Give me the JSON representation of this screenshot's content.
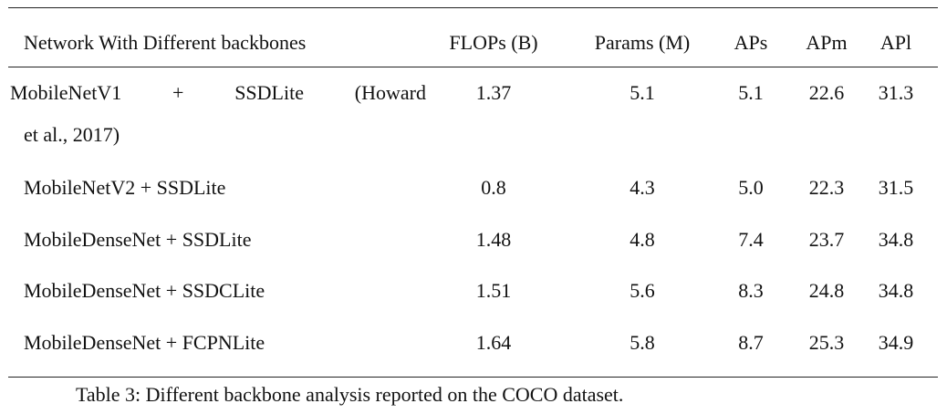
{
  "table": {
    "headers": [
      "Network With Different backbones",
      "FLOPs (B)",
      "Params (M)",
      "APs",
      "APm",
      "APl"
    ],
    "rows": [
      {
        "network_line1": [
          "MobileNetV1",
          "+",
          "SSDLite",
          "(Howard"
        ],
        "network_line2": "et al., 2017)",
        "flops": "1.37",
        "params": "5.1",
        "aps": "5.1",
        "apm": "22.6",
        "apl": "31.3"
      },
      {
        "network": "MobileNetV2 + SSDLite",
        "flops": "0.8",
        "params": "4.3",
        "aps": "5.0",
        "apm": "22.3",
        "apl": "31.5"
      },
      {
        "network": "MobileDenseNet + SSDLite",
        "flops": "1.48",
        "params": "4.8",
        "aps": "7.4",
        "apm": "23.7",
        "apl": "34.8"
      },
      {
        "network": "MobileDenseNet + SSDCLite",
        "flops": "1.51",
        "params": "5.6",
        "aps": "8.3",
        "apm": "24.8",
        "apl": "34.8"
      },
      {
        "network": "MobileDenseNet + FCPNLite",
        "flops": "1.64",
        "params": "5.8",
        "aps": "8.7",
        "apm": "25.3",
        "apl": "34.9"
      }
    ]
  },
  "caption": "Table 3: Different backbone analysis reported on the COCO dataset."
}
